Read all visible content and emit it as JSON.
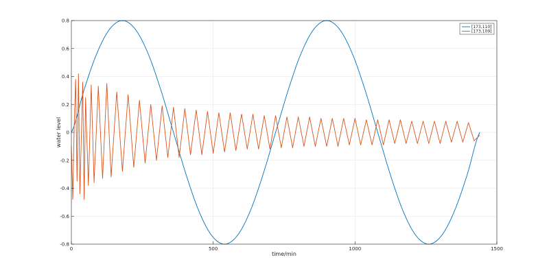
{
  "chart_data": {
    "type": "line",
    "xlabel": "time/min",
    "ylabel": "water level",
    "xlim": [
      0,
      1500
    ],
    "ylim": [
      -0.8,
      0.8
    ],
    "xticks": [
      0,
      500,
      1000,
      1500
    ],
    "yticks": [
      -0.8,
      -0.6,
      -0.4,
      -0.2,
      0,
      0.2,
      0.4,
      0.6,
      0.8
    ],
    "grid": true,
    "legend_position": "top-right",
    "series": [
      {
        "name": "[173,110]",
        "color": "#0072BD",
        "x": [
          0,
          45,
          90,
          135,
          180,
          225,
          270,
          315,
          360,
          405,
          450,
          495,
          540,
          585,
          630,
          675,
          720,
          765,
          810,
          855,
          900,
          945,
          990,
          1035,
          1080,
          1125,
          1170,
          1215,
          1260,
          1305,
          1350,
          1395,
          1440
        ],
        "y": [
          0.0,
          0.306,
          0.566,
          0.739,
          0.8,
          0.739,
          0.566,
          0.306,
          0.0,
          -0.306,
          -0.566,
          -0.739,
          -0.8,
          -0.739,
          -0.566,
          -0.306,
          0.0,
          0.306,
          0.566,
          0.739,
          0.8,
          0.739,
          0.566,
          0.306,
          0.0,
          -0.306,
          -0.566,
          -0.739,
          -0.8,
          -0.739,
          -0.566,
          -0.306,
          0.0
        ]
      },
      {
        "name": "[173,109]",
        "color": "#D95319",
        "x": [
          0,
          5,
          10,
          15,
          20,
          25,
          30,
          40,
          45,
          50,
          60,
          70,
          80,
          95,
          110,
          125,
          140,
          160,
          180,
          200,
          220,
          240,
          260,
          280,
          300,
          320,
          340,
          360,
          380,
          400,
          420,
          440,
          460,
          480,
          500,
          520,
          540,
          560,
          580,
          600,
          620,
          640,
          660,
          680,
          700,
          720,
          740,
          760,
          780,
          800,
          820,
          840,
          860,
          880,
          900,
          920,
          940,
          960,
          980,
          1000,
          1020,
          1040,
          1060,
          1080,
          1100,
          1120,
          1140,
          1160,
          1180,
          1200,
          1220,
          1240,
          1260,
          1280,
          1300,
          1320,
          1340,
          1360,
          1380,
          1400,
          1420,
          1440
        ],
        "y": [
          -0.1,
          -0.48,
          0.05,
          0.38,
          -0.35,
          0.42,
          -0.44,
          0.36,
          -0.48,
          0.25,
          -0.38,
          0.34,
          -0.36,
          0.33,
          -0.33,
          0.35,
          -0.32,
          0.29,
          -0.28,
          0.27,
          -0.25,
          0.23,
          -0.22,
          0.2,
          -0.2,
          0.19,
          -0.18,
          0.18,
          -0.18,
          0.17,
          -0.16,
          0.16,
          -0.16,
          0.15,
          -0.15,
          0.14,
          -0.14,
          0.14,
          -0.13,
          0.13,
          -0.12,
          0.13,
          -0.12,
          0.12,
          -0.12,
          0.12,
          -0.11,
          0.11,
          -0.11,
          0.11,
          -0.1,
          0.11,
          -0.1,
          0.1,
          -0.1,
          0.1,
          -0.1,
          0.1,
          -0.09,
          0.1,
          -0.09,
          0.09,
          -0.09,
          0.09,
          -0.09,
          0.09,
          -0.08,
          0.09,
          -0.08,
          0.08,
          -0.08,
          0.08,
          -0.08,
          0.08,
          -0.08,
          0.08,
          -0.07,
          0.08,
          -0.07,
          0.07,
          -0.06,
          -0.02
        ]
      }
    ]
  }
}
